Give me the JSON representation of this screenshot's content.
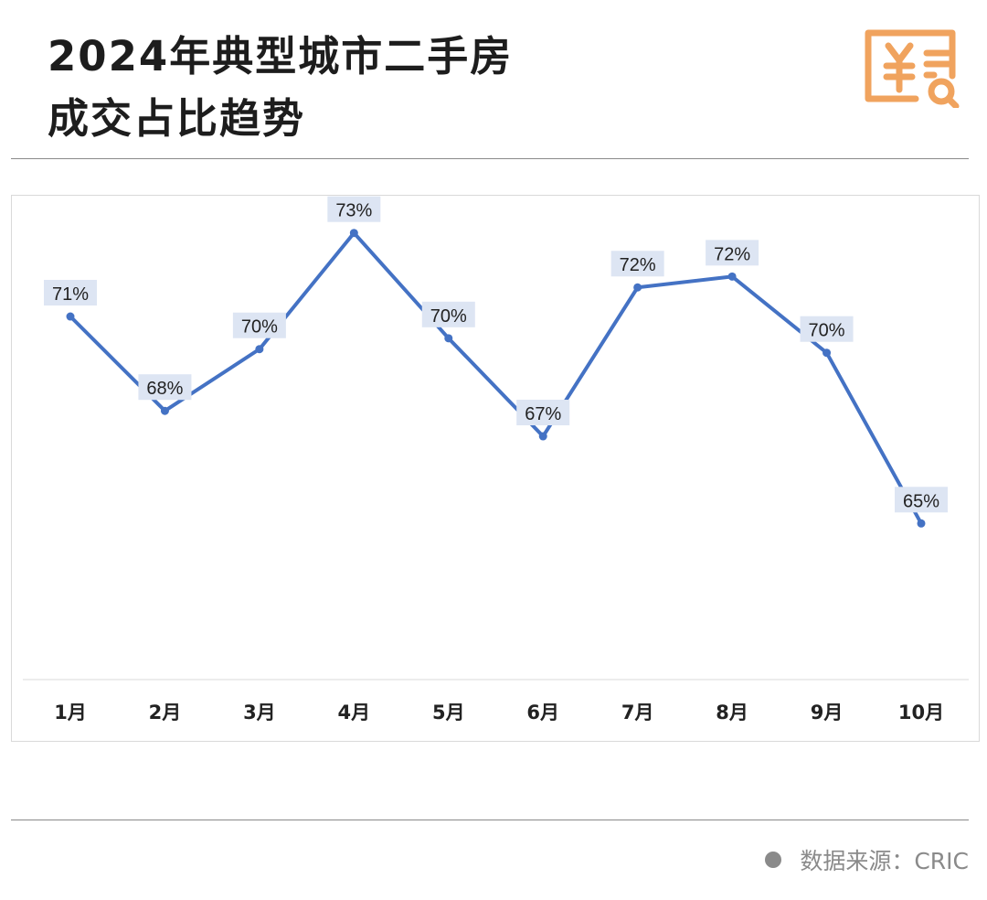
{
  "header": {
    "title_line1": "2024年典型城市二手房",
    "title_line2": "成交占比趋势",
    "icon": "invoice-search-icon",
    "icon_color": "#f0a35e"
  },
  "chart_data": {
    "type": "line",
    "title": "2024年典型城市二手房成交占比趋势",
    "categories": [
      "1月",
      "2月",
      "3月",
      "4月",
      "5月",
      "6月",
      "7月",
      "8月",
      "9月",
      "10月"
    ],
    "series": [
      {
        "name": "二手房成交占比",
        "values": [
          70.7,
          68.1,
          69.8,
          73.0,
          70.1,
          67.4,
          71.5,
          71.8,
          69.7,
          65.0
        ],
        "labels": [
          "71%",
          "68%",
          "70%",
          "73%",
          "70%",
          "67%",
          "72%",
          "72%",
          "70%",
          "65%"
        ],
        "color": "#4472c4"
      }
    ],
    "xlabel": "",
    "ylabel": "",
    "ylim": [
      60.7,
      74
    ],
    "grid": false,
    "legend": "none"
  },
  "footer": {
    "source": "数据来源：CRIC"
  }
}
